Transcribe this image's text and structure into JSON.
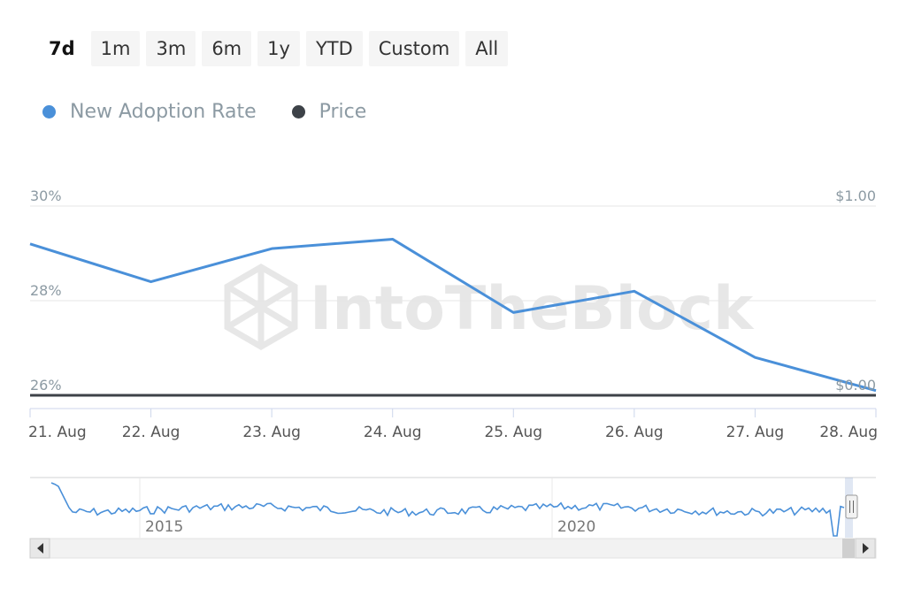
{
  "range_selector": {
    "buttons": [
      "7d",
      "1m",
      "3m",
      "6m",
      "1y",
      "YTD",
      "Custom",
      "All"
    ],
    "selected": "7d"
  },
  "legend": [
    {
      "name": "New Adoption Rate",
      "color": "#4a90d9"
    },
    {
      "name": "Price",
      "color": "#3d4248"
    }
  ],
  "watermark": "IntoTheBlock",
  "chart_data": {
    "type": "line",
    "categories": [
      "21. Aug",
      "22. Aug",
      "23. Aug",
      "24. Aug",
      "25. Aug",
      "26. Aug",
      "27. Aug",
      "28. Aug"
    ],
    "y_left": {
      "ticks": [
        "30%",
        "28%",
        "26%"
      ],
      "range": [
        26,
        30
      ]
    },
    "y_right": {
      "ticks": [
        "$1.00",
        "$0.00"
      ],
      "range": [
        0,
        1
      ]
    },
    "grid": true,
    "legend_position": "top-left",
    "series": [
      {
        "name": "New Adoption Rate",
        "axis": "left",
        "color": "#4a90d9",
        "values": [
          29.2,
          28.4,
          29.1,
          29.3,
          27.75,
          28.2,
          26.8,
          26.1
        ]
      },
      {
        "name": "Price",
        "axis": "right",
        "color": "#3d4248",
        "values": [
          0.0,
          0.0,
          0.0,
          0.0,
          0.0,
          0.0,
          0.0,
          0.0
        ]
      }
    ],
    "navigator": {
      "tick_labels": [
        "2015",
        "2020"
      ],
      "series_color": "#4a90d9"
    }
  }
}
